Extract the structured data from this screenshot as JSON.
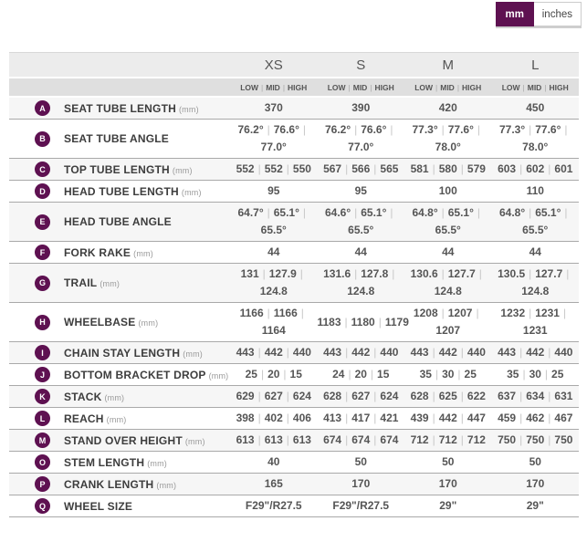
{
  "colors": {
    "brand_purple": "#5e1151",
    "header_bg": "#ececec",
    "subheader_bg": "#dfdfdf",
    "stripe_bg": "#f6f6f6",
    "separator_line": "#a9a9a9"
  },
  "unit_toggle": {
    "options": [
      {
        "label": "mm",
        "selected": true
      },
      {
        "label": "inches",
        "selected": false
      }
    ]
  },
  "table": {
    "sizes": [
      "XS",
      "S",
      "M",
      "L"
    ],
    "flip_positions": [
      "LOW",
      "MID",
      "HIGH"
    ],
    "rows": [
      {
        "letter": "A",
        "label": "SEAT TUBE LENGTH",
        "unit": "(mm)",
        "cells": [
          [
            [
              "370"
            ]
          ],
          [
            [
              "390"
            ]
          ],
          [
            [
              "420"
            ]
          ],
          [
            [
              "450"
            ]
          ]
        ]
      },
      {
        "letter": "B",
        "label": "SEAT TUBE ANGLE",
        "unit": "",
        "cells": [
          [
            [
              "76.2°",
              "76.6°"
            ],
            [
              "77.0°"
            ]
          ],
          [
            [
              "76.2°",
              "76.6°"
            ],
            [
              "77.0°"
            ]
          ],
          [
            [
              "77.3°",
              "77.6°"
            ],
            [
              "78.0°"
            ]
          ],
          [
            [
              "77.3°",
              "77.6°"
            ],
            [
              "78.0°"
            ]
          ]
        ]
      },
      {
        "letter": "C",
        "label": "TOP TUBE LENGTH",
        "unit": "(mm)",
        "cells": [
          [
            [
              "552",
              "552",
              "550"
            ]
          ],
          [
            [
              "567",
              "566",
              "565"
            ]
          ],
          [
            [
              "581",
              "580",
              "579"
            ]
          ],
          [
            [
              "603",
              "602",
              "601"
            ]
          ]
        ]
      },
      {
        "letter": "D",
        "label": "HEAD TUBE LENGTH",
        "unit": "(mm)",
        "cells": [
          [
            [
              "95"
            ]
          ],
          [
            [
              "95"
            ]
          ],
          [
            [
              "100"
            ]
          ],
          [
            [
              "110"
            ]
          ]
        ]
      },
      {
        "letter": "E",
        "label": "HEAD TUBE ANGLE",
        "unit": "",
        "cells": [
          [
            [
              "64.7°",
              "65.1°"
            ],
            [
              "65.5°"
            ]
          ],
          [
            [
              "64.6°",
              "65.1°"
            ],
            [
              "65.5°"
            ]
          ],
          [
            [
              "64.8°",
              "65.1°"
            ],
            [
              "65.5°"
            ]
          ],
          [
            [
              "64.8°",
              "65.1°"
            ],
            [
              "65.5°"
            ]
          ]
        ]
      },
      {
        "letter": "F",
        "label": "FORK RAKE",
        "unit": "(mm)",
        "cells": [
          [
            [
              "44"
            ]
          ],
          [
            [
              "44"
            ]
          ],
          [
            [
              "44"
            ]
          ],
          [
            [
              "44"
            ]
          ]
        ]
      },
      {
        "letter": "G",
        "label": "TRAIL",
        "unit": "(mm)",
        "cells": [
          [
            [
              "131",
              "127.9"
            ],
            [
              "124.8"
            ]
          ],
          [
            [
              "131.6",
              "127.8"
            ],
            [
              "124.8"
            ]
          ],
          [
            [
              "130.6",
              "127.7"
            ],
            [
              "124.8"
            ]
          ],
          [
            [
              "130.5",
              "127.7"
            ],
            [
              "124.8"
            ]
          ]
        ]
      },
      {
        "letter": "H",
        "label": "WHEELBASE",
        "unit": "(mm)",
        "cells": [
          [
            [
              "1166",
              "1166"
            ],
            [
              "1164"
            ]
          ],
          [
            [
              "1183",
              "1180",
              "1179"
            ]
          ],
          [
            [
              "1208",
              "1207"
            ],
            [
              "1207"
            ]
          ],
          [
            [
              "1232",
              "1231"
            ],
            [
              "1231"
            ]
          ]
        ]
      },
      {
        "letter": "I",
        "label": "CHAIN STAY LENGTH",
        "unit": "(mm)",
        "cells": [
          [
            [
              "443",
              "442",
              "440"
            ]
          ],
          [
            [
              "443",
              "442",
              "440"
            ]
          ],
          [
            [
              "443",
              "442",
              "440"
            ]
          ],
          [
            [
              "443",
              "442",
              "440"
            ]
          ]
        ]
      },
      {
        "letter": "J",
        "label": "BOTTOM BRACKET DROP",
        "unit": "(mm)",
        "cells": [
          [
            [
              "25",
              "20",
              "15"
            ]
          ],
          [
            [
              "24",
              "20",
              "15"
            ]
          ],
          [
            [
              "35",
              "30",
              "25"
            ]
          ],
          [
            [
              "35",
              "30",
              "25"
            ]
          ]
        ]
      },
      {
        "letter": "K",
        "label": "STACK",
        "unit": "(mm)",
        "cells": [
          [
            [
              "629",
              "627",
              "624"
            ]
          ],
          [
            [
              "628",
              "627",
              "624"
            ]
          ],
          [
            [
              "628",
              "625",
              "622"
            ]
          ],
          [
            [
              "637",
              "634",
              "631"
            ]
          ]
        ]
      },
      {
        "letter": "L",
        "label": "REACH",
        "unit": "(mm)",
        "cells": [
          [
            [
              "398",
              "402",
              "406"
            ]
          ],
          [
            [
              "413",
              "417",
              "421"
            ]
          ],
          [
            [
              "439",
              "442",
              "447"
            ]
          ],
          [
            [
              "459",
              "462",
              "467"
            ]
          ]
        ]
      },
      {
        "letter": "M",
        "label": "STAND OVER HEIGHT",
        "unit": "(mm)",
        "cells": [
          [
            [
              "613",
              "613",
              "613"
            ]
          ],
          [
            [
              "674",
              "674",
              "674"
            ]
          ],
          [
            [
              "712",
              "712",
              "712"
            ]
          ],
          [
            [
              "750",
              "750",
              "750"
            ]
          ]
        ]
      },
      {
        "letter": "O",
        "label": "STEM LENGTH",
        "unit": "(mm)",
        "cells": [
          [
            [
              "40"
            ]
          ],
          [
            [
              "50"
            ]
          ],
          [
            [
              "50"
            ]
          ],
          [
            [
              "50"
            ]
          ]
        ]
      },
      {
        "letter": "P",
        "label": "CRANK LENGTH",
        "unit": "(mm)",
        "cells": [
          [
            [
              "165"
            ]
          ],
          [
            [
              "170"
            ]
          ],
          [
            [
              "170"
            ]
          ],
          [
            [
              "170"
            ]
          ]
        ]
      },
      {
        "letter": "Q",
        "label": "WHEEL SIZE",
        "unit": "",
        "cells": [
          [
            [
              "F29\"/R27.5"
            ]
          ],
          [
            [
              "F29\"/R27.5"
            ]
          ],
          [
            [
              "29\""
            ]
          ],
          [
            [
              "29\""
            ]
          ]
        ]
      }
    ]
  }
}
